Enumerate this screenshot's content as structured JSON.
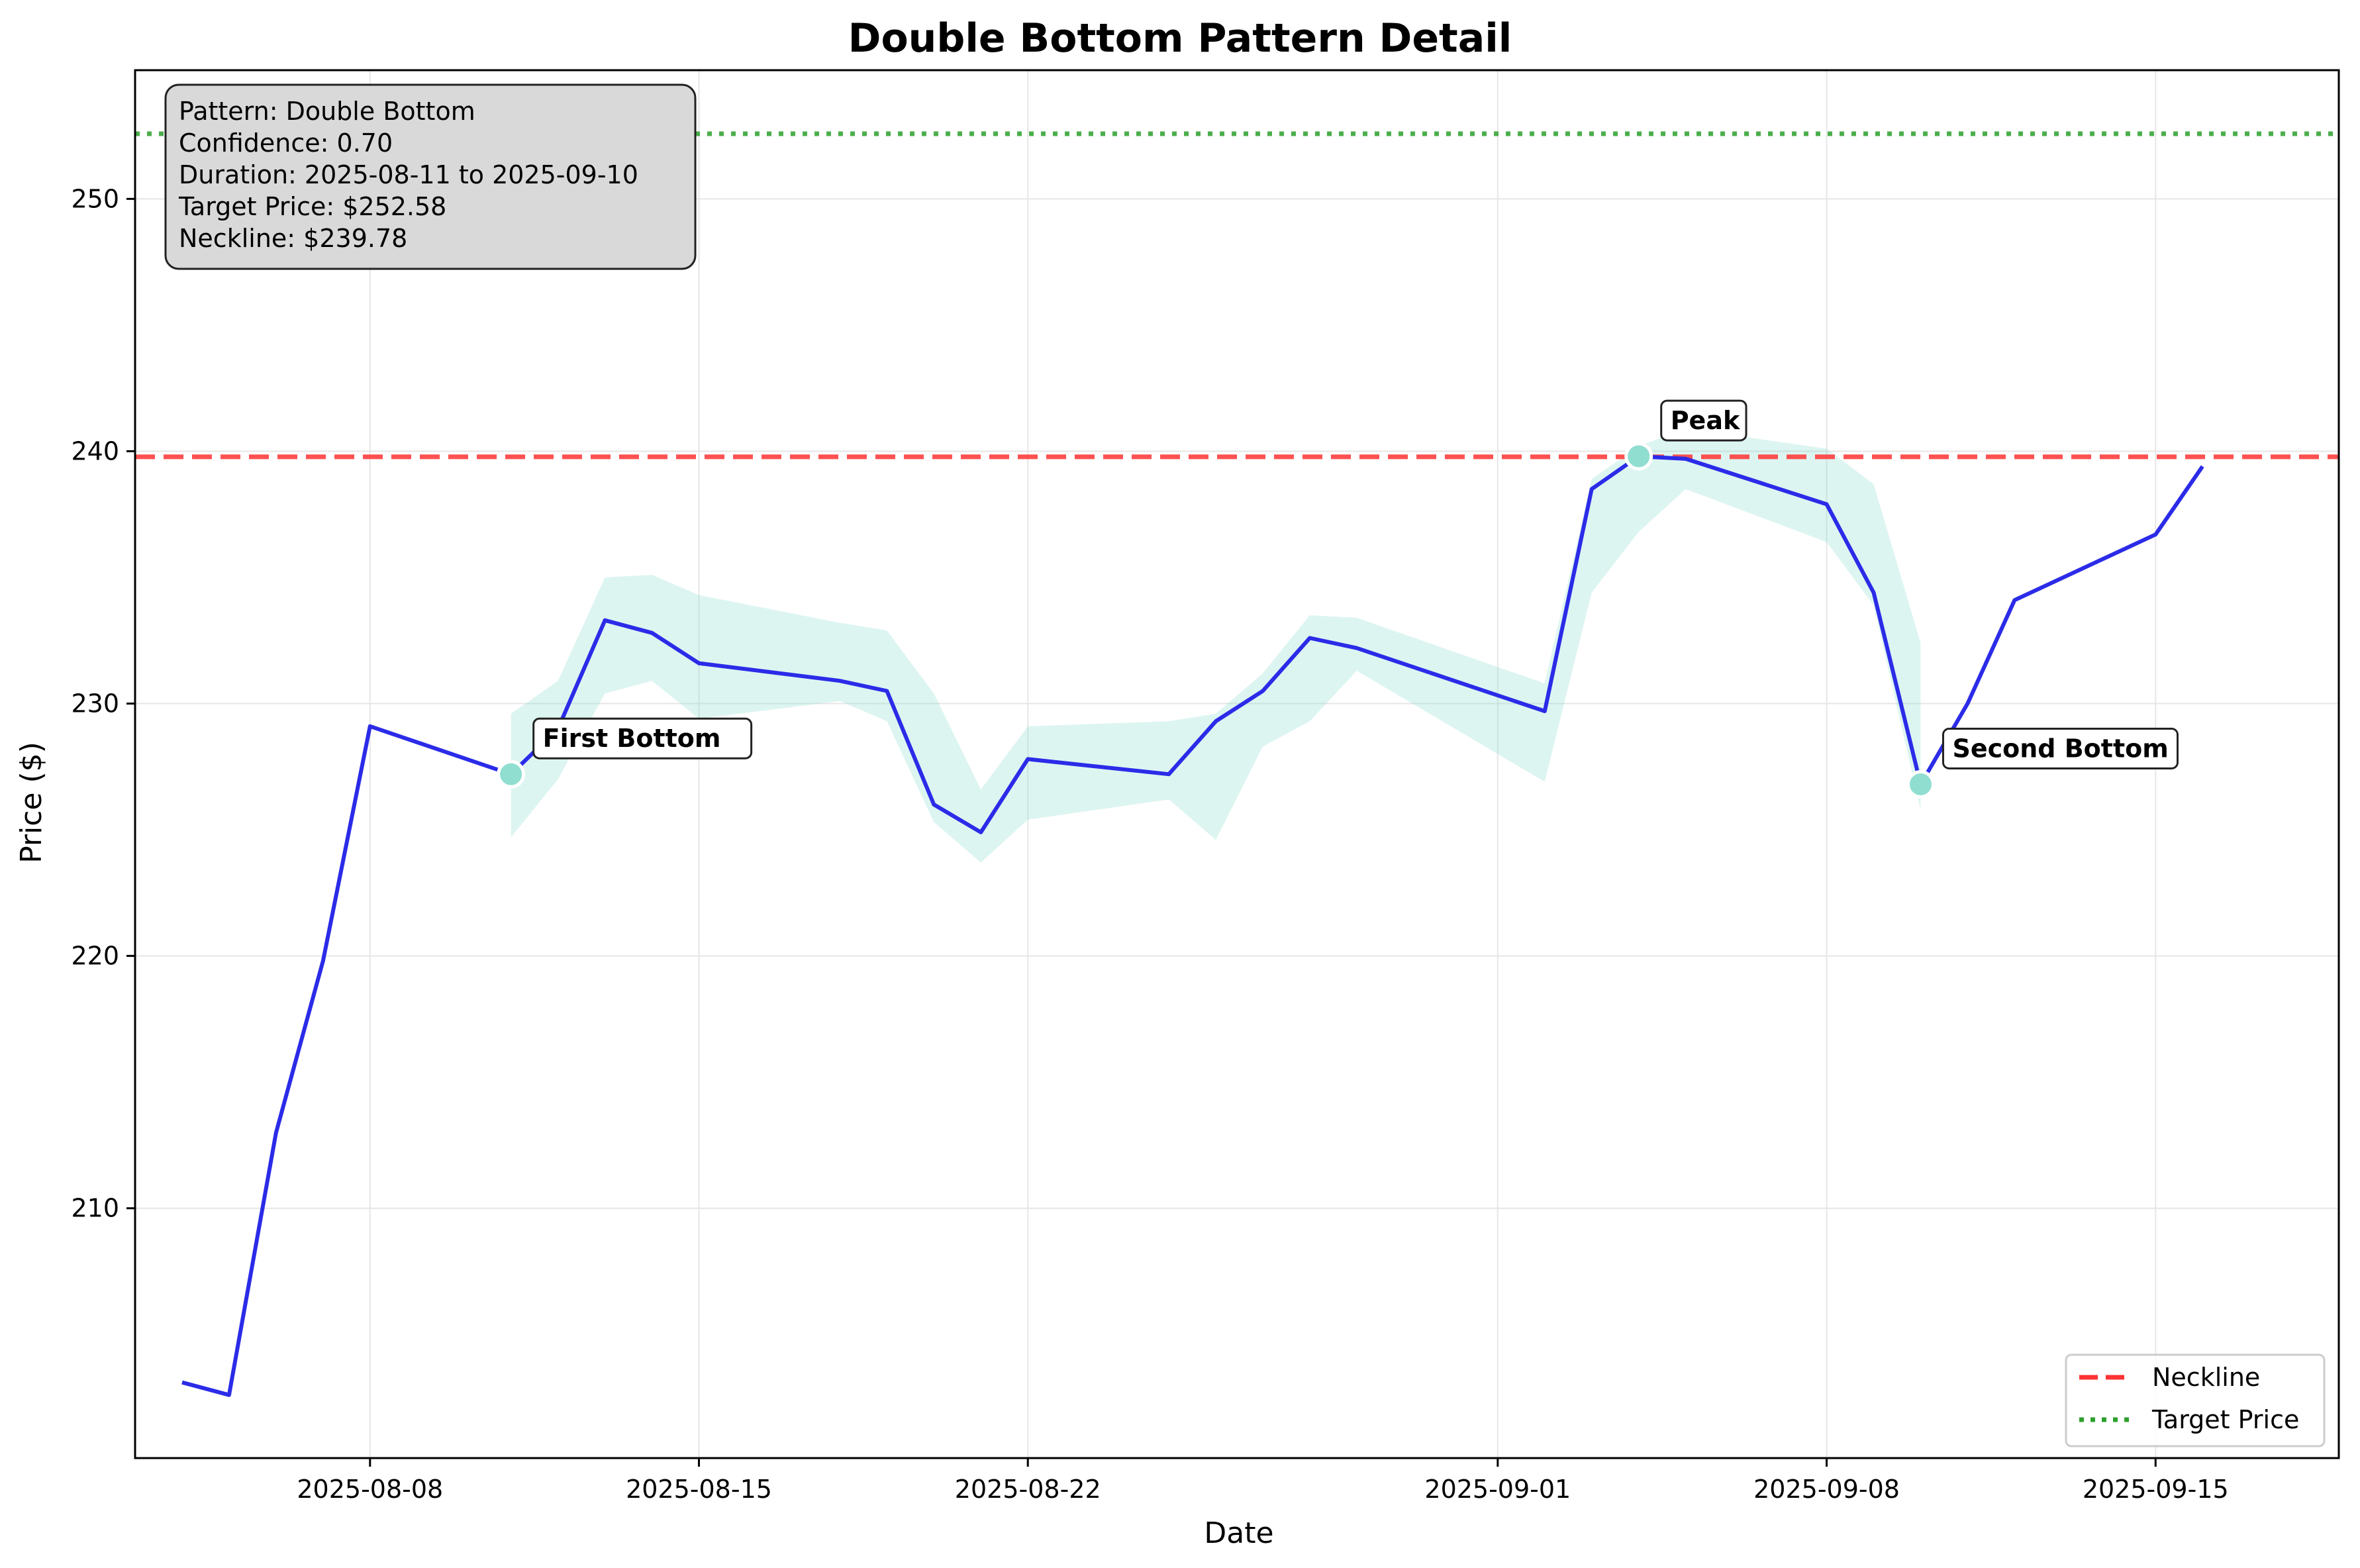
{
  "chart_data": {
    "type": "line",
    "title": "Double Bottom Pattern Detail",
    "xlabel": "Date",
    "ylabel": "Price ($)",
    "xlim": [
      "2025-08-03",
      "2025-09-18.9"
    ],
    "ylim": [
      200.1,
      255.1
    ],
    "x_ticks": [
      "2025-08-08",
      "2025-08-15",
      "2025-08-22",
      "2025-09-01",
      "2025-09-08",
      "2025-09-15"
    ],
    "y_ticks": [
      210,
      220,
      230,
      240,
      250
    ],
    "grid": true,
    "legend_placement": "lower-right",
    "series": [
      {
        "name": "",
        "color": "#2b2be8",
        "points": [
          [
            "2025-08-04",
            203.1
          ],
          [
            "2025-08-05",
            202.6
          ],
          [
            "2025-08-06",
            213.0
          ],
          [
            "2025-08-07",
            219.8
          ],
          [
            "2025-08-08",
            229.1
          ],
          [
            "2025-08-11",
            227.2
          ],
          [
            "2025-08-12",
            229.0
          ],
          [
            "2025-08-13",
            233.3
          ],
          [
            "2025-08-14",
            232.8
          ],
          [
            "2025-08-15",
            231.6
          ],
          [
            "2025-08-18",
            230.9
          ],
          [
            "2025-08-19",
            230.5
          ],
          [
            "2025-08-20",
            226.0
          ],
          [
            "2025-08-21",
            224.9
          ],
          [
            "2025-08-22",
            227.8
          ],
          [
            "2025-08-25",
            227.2
          ],
          [
            "2025-08-26",
            229.3
          ],
          [
            "2025-08-27",
            230.5
          ],
          [
            "2025-08-28",
            232.6
          ],
          [
            "2025-08-29",
            232.2
          ],
          [
            "2025-09-02",
            229.7
          ],
          [
            "2025-09-03",
            238.5
          ],
          [
            "2025-09-04",
            239.8
          ],
          [
            "2025-09-05",
            239.7
          ],
          [
            "2025-09-08",
            237.9
          ],
          [
            "2025-09-09",
            234.4
          ],
          [
            "2025-09-10",
            226.8
          ],
          [
            "2025-09-11",
            230.0
          ],
          [
            "2025-09-12",
            234.1
          ],
          [
            "2025-09-15",
            236.7
          ],
          [
            "2025-09-16",
            239.4
          ]
        ]
      }
    ],
    "pattern_band": {
      "color": "#8fded0",
      "upper": [
        [
          "2025-08-11",
          229.6
        ],
        [
          "2025-08-12",
          230.9
        ],
        [
          "2025-08-13",
          235.0
        ],
        [
          "2025-08-14",
          235.1
        ],
        [
          "2025-08-15",
          234.3
        ],
        [
          "2025-08-18",
          233.2
        ],
        [
          "2025-08-19",
          232.9
        ],
        [
          "2025-08-20",
          230.4
        ],
        [
          "2025-08-21",
          226.6
        ],
        [
          "2025-08-22",
          229.1
        ],
        [
          "2025-08-25",
          229.3
        ],
        [
          "2025-08-26",
          229.6
        ],
        [
          "2025-08-27",
          231.2
        ],
        [
          "2025-08-28",
          233.5
        ],
        [
          "2025-08-29",
          233.4
        ],
        [
          "2025-09-02",
          230.8
        ],
        [
          "2025-09-03",
          238.9
        ],
        [
          "2025-09-04",
          240.2
        ],
        [
          "2025-09-05",
          240.9
        ],
        [
          "2025-09-08",
          240.1
        ],
        [
          "2025-09-09",
          238.7
        ],
        [
          "2025-09-10",
          232.4
        ]
      ],
      "lower": [
        [
          "2025-08-11",
          224.7
        ],
        [
          "2025-08-12",
          227.0
        ],
        [
          "2025-08-13",
          230.4
        ],
        [
          "2025-08-14",
          230.9
        ],
        [
          "2025-08-15",
          229.4
        ],
        [
          "2025-08-18",
          230.1
        ],
        [
          "2025-08-19",
          229.3
        ],
        [
          "2025-08-20",
          225.3
        ],
        [
          "2025-08-21",
          223.7
        ],
        [
          "2025-08-22",
          225.4
        ],
        [
          "2025-08-25",
          226.2
        ],
        [
          "2025-08-26",
          224.6
        ],
        [
          "2025-08-27",
          228.3
        ],
        [
          "2025-08-28",
          229.3
        ],
        [
          "2025-08-29",
          231.3
        ],
        [
          "2025-09-02",
          226.9
        ],
        [
          "2025-09-03",
          234.4
        ],
        [
          "2025-09-04",
          236.8
        ],
        [
          "2025-09-05",
          238.5
        ],
        [
          "2025-09-08",
          236.4
        ],
        [
          "2025-09-09",
          233.9
        ],
        [
          "2025-09-10",
          225.8
        ]
      ]
    },
    "key_points": [
      {
        "label": "First Bottom",
        "x": "2025-08-11",
        "y": 227.2
      },
      {
        "label": "Peak",
        "x": "2025-09-04",
        "y": 239.8
      },
      {
        "label": "Second Bottom",
        "x": "2025-09-10",
        "y": 226.8
      }
    ],
    "key_point_color": "#8fded0",
    "reference_lines": [
      {
        "name": "Neckline",
        "y": 239.78,
        "color": "#ff3333",
        "style": "dashed"
      },
      {
        "name": "Target Price",
        "y": 252.58,
        "color": "#2ca02c",
        "style": "dotted"
      }
    ],
    "info_box": {
      "placement": "top-left",
      "lines": [
        "Pattern: Double Bottom",
        "Confidence: 0.70",
        "Duration: 2025-08-11 to 2025-09-10",
        "Target Price: $252.58",
        "Neckline: $239.78"
      ]
    }
  }
}
